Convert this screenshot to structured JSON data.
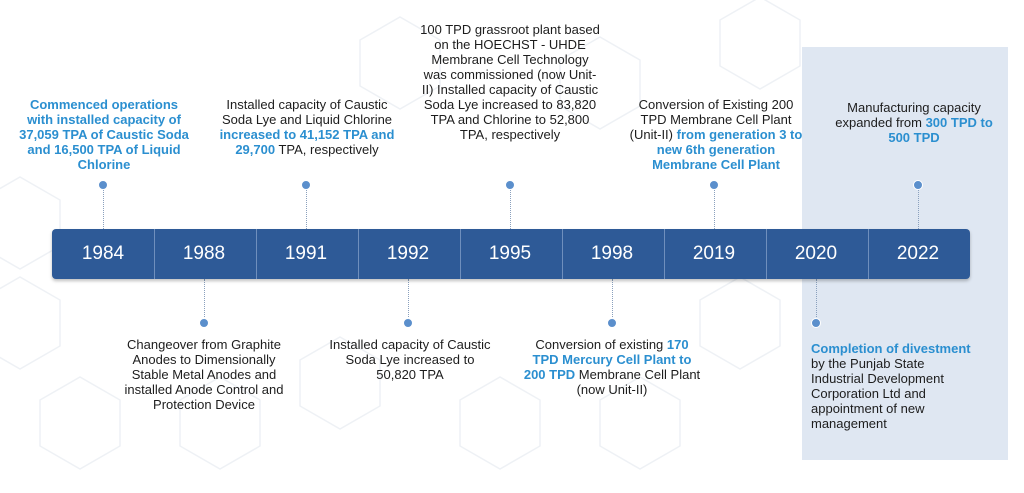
{
  "colors": {
    "bar": "#2e5a97",
    "accent": "#2b8fd0",
    "panel": "#dfe7f2",
    "dot": "#5b8fcc"
  },
  "years": [
    "1984",
    "1988",
    "1991",
    "1992",
    "1995",
    "1998",
    "2019",
    "2020",
    "2022"
  ],
  "events": {
    "e1984": {
      "t1": "Commenced operations with installed capacity of 37,059 TPA of Caustic Soda and 16,500 TPA of Liquid Chlorine"
    },
    "e1988": {
      "t1": "Changeover from Graphite Anodes to Dimensionally Stable Metal Anodes and installed Anode Control and Protection Device"
    },
    "e1991": {
      "t1": "Installed capacity of Caustic Soda Lye and Liquid Chlorine ",
      "h1": "increased to 41,152 TPA and 29,700",
      "t2": " TPA, respectively"
    },
    "e1992": {
      "t1": "Installed capacity of Caustic Soda Lye increased to 50,820 TPA"
    },
    "e1995": {
      "t1": "100 TPD grassroot plant based on the HOECHST - UHDE Membrane Cell Technology was commissioned (now Unit-II) Installed capacity of Caustic Soda Lye increased to 83,820 TPA and Chlorine to 52,800 TPA, respectively"
    },
    "e1998": {
      "t1": "Conversion of existing ",
      "h1": "170 TPD Mercury Cell Plant to 200 TPD",
      "t2": " Membrane Cell Plant (now Unit-II)"
    },
    "e2019": {
      "t1": "Conversion of Existing 200 TPD Membrane Cell Plant (Unit-II) ",
      "h1": "from generation 3 to new 6th generation Membrane Cell Plant"
    },
    "e2020": {
      "h1": "Completion of divestment",
      "t1": " by the Punjab State Industrial Development Corporation Ltd and appointment of new management"
    },
    "e2022": {
      "t1": "Manufacturing capacity expanded from ",
      "h1": "300 TPD to 500 TPD"
    }
  }
}
